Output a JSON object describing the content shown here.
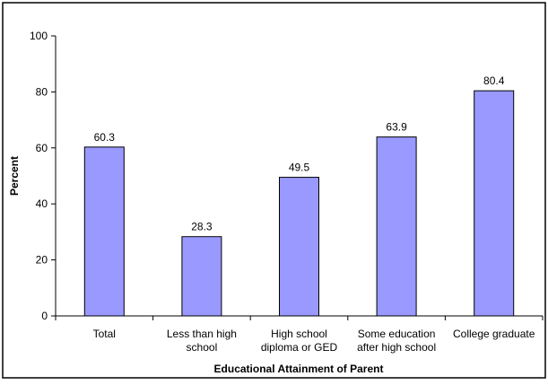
{
  "chart_data": {
    "type": "bar",
    "title": "",
    "xlabel": "Educational Attainment of Parent",
    "ylabel": "Percent",
    "ylim": [
      0,
      100
    ],
    "yticks": [
      0,
      20,
      40,
      60,
      80,
      100
    ],
    "ytick_labels": [
      "0",
      "20",
      "40",
      "60",
      "80",
      "100"
    ],
    "categories": [
      [
        "Total"
      ],
      [
        "Less than high",
        "school"
      ],
      [
        "High school",
        "diploma or GED"
      ],
      [
        "Some education",
        "after high school"
      ],
      [
        "College graduate"
      ]
    ],
    "values": [
      60.3,
      28.3,
      49.5,
      63.9,
      80.4
    ],
    "data_labels": [
      "60.3",
      "28.3",
      "49.5",
      "63.9",
      "80.4"
    ],
    "bar_color": "#9999ff",
    "grid": false,
    "legend": "none"
  }
}
